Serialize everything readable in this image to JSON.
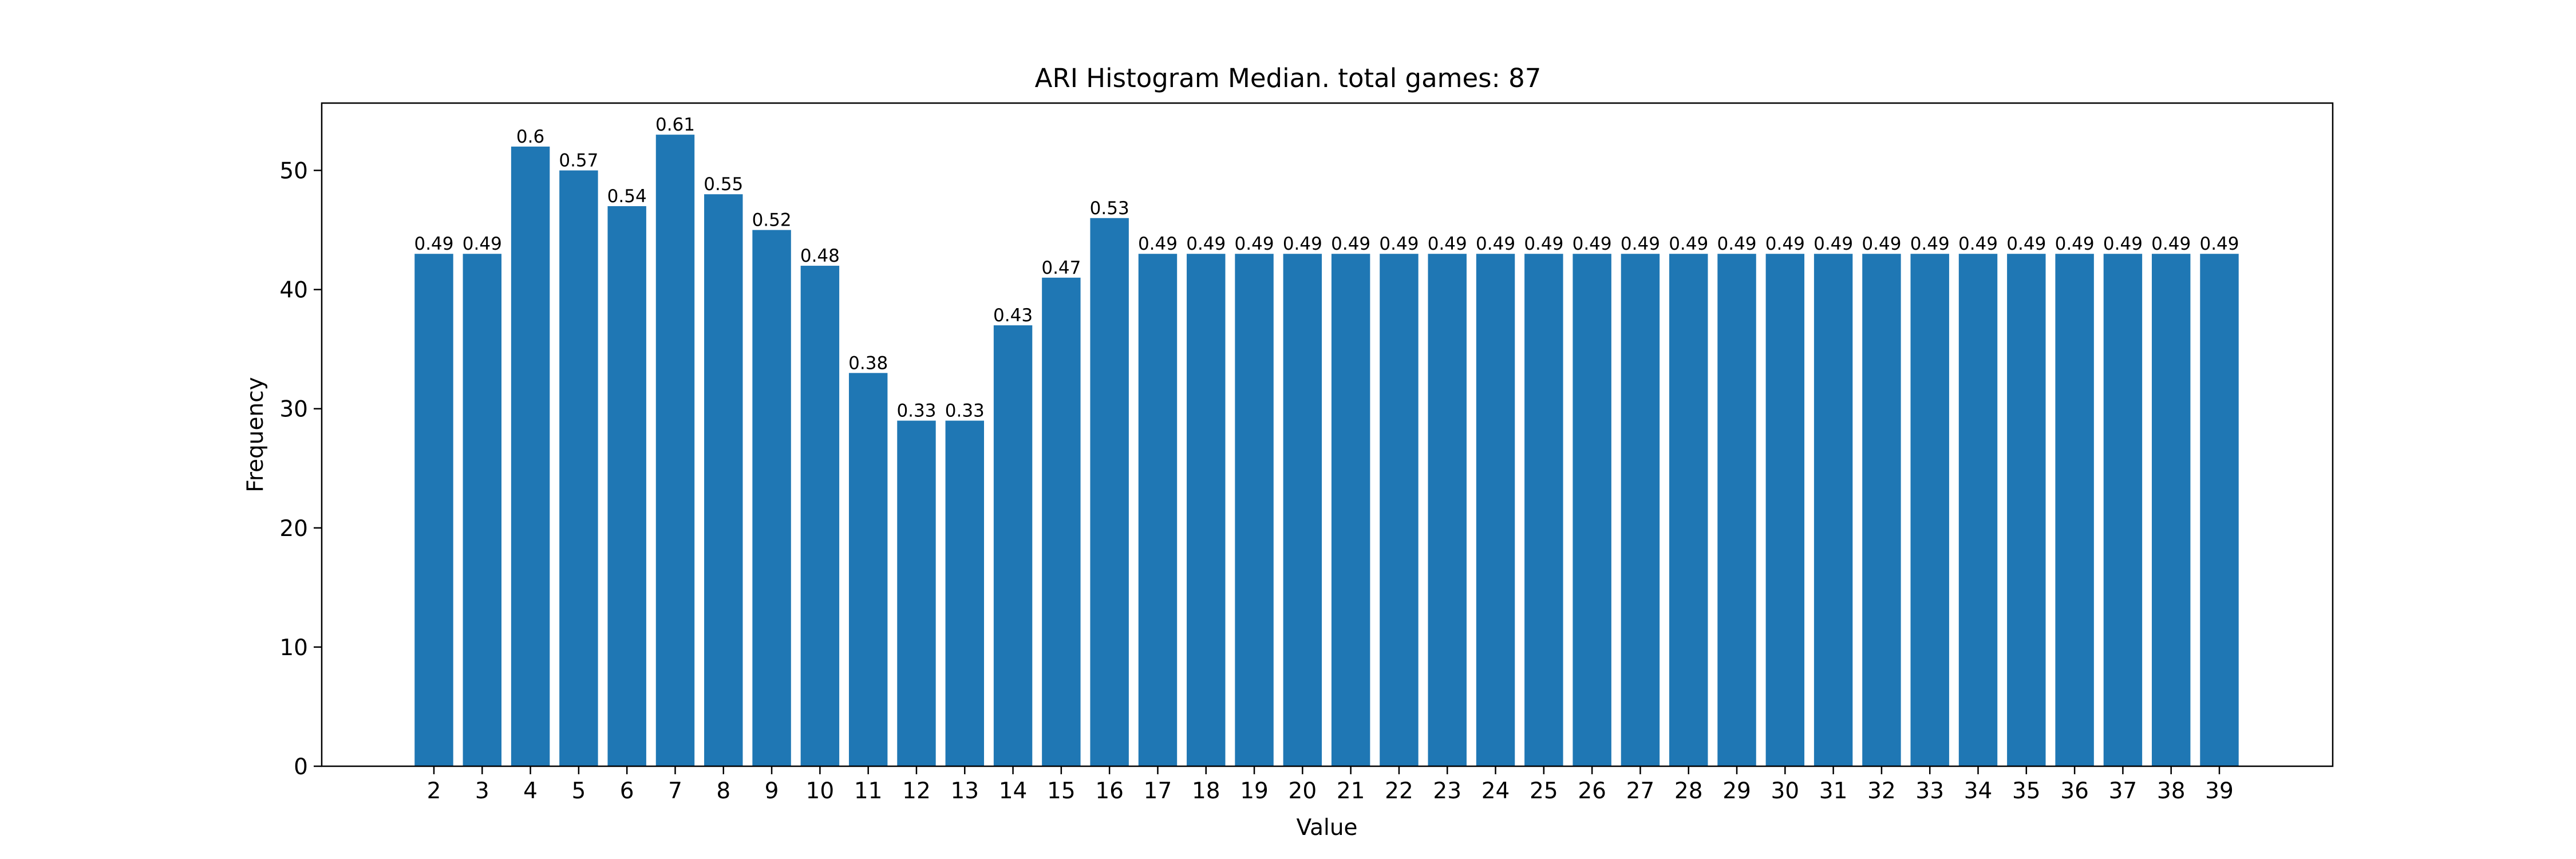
{
  "chart_data": {
    "type": "bar",
    "title": "ARI Histogram Median. total games: 87",
    "xlabel": "Value",
    "ylabel": "Frequency",
    "categories": [
      "2",
      "3",
      "4",
      "5",
      "6",
      "7",
      "8",
      "9",
      "10",
      "11",
      "12",
      "13",
      "14",
      "15",
      "16",
      "17",
      "18",
      "19",
      "20",
      "21",
      "22",
      "23",
      "24",
      "25",
      "26",
      "27",
      "28",
      "29",
      "30",
      "31",
      "32",
      "33",
      "34",
      "35",
      "36",
      "37",
      "38",
      "39"
    ],
    "values": [
      43,
      43,
      52,
      50,
      47,
      53,
      48,
      45,
      42,
      33,
      29,
      29,
      37,
      41,
      46,
      43,
      43,
      43,
      43,
      43,
      43,
      43,
      43,
      43,
      43,
      43,
      43,
      43,
      43,
      43,
      43,
      43,
      43,
      43,
      43,
      43,
      43,
      43
    ],
    "bar_labels": [
      "0.49",
      "0.49",
      "0.6",
      "0.57",
      "0.54",
      "0.61",
      "0.55",
      "0.52",
      "0.48",
      "0.38",
      "0.33",
      "0.33",
      "0.43",
      "0.47",
      "0.53",
      "0.49",
      "0.49",
      "0.49",
      "0.49",
      "0.49",
      "0.49",
      "0.49",
      "0.49",
      "0.49",
      "0.49",
      "0.49",
      "0.49",
      "0.49",
      "0.49",
      "0.49",
      "0.49",
      "0.49",
      "0.49",
      "0.49",
      "0.49",
      "0.49",
      "0.49",
      "0.49"
    ],
    "yticks": [
      "0",
      "10",
      "20",
      "30",
      "40",
      "50"
    ],
    "ylim": [
      0,
      55.65
    ],
    "grid": false,
    "bar_color": "#1f77b4"
  }
}
